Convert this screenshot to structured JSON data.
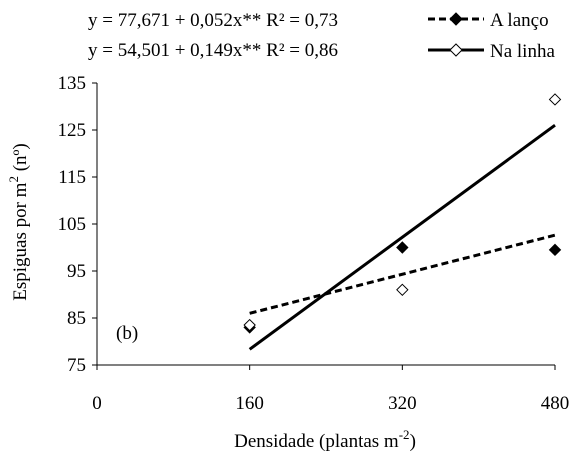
{
  "chart_data": {
    "type": "scatter",
    "panel_label": "(b)",
    "xlabel_main": "Densidade (plantas m",
    "xlabel_sup": "-2",
    "xlabel_end": ")",
    "ylabel_main": "Espiguas por m",
    "ylabel_sup": "2",
    "ylabel_end": " (nº)",
    "xlim": [
      0,
      480
    ],
    "ylim": [
      75,
      135
    ],
    "x_ticks": [
      0,
      160,
      320,
      480
    ],
    "y_ticks": [
      75,
      85,
      95,
      105,
      115,
      125,
      135
    ],
    "grid": false,
    "legend_position": "top",
    "series": [
      {
        "name": "A lanço",
        "equation": "y = 77,671 + 0,052x**  R² = 0,73",
        "marker": "filled-diamond",
        "line_style": "dashed",
        "intercept": 77.671,
        "slope": 0.052,
        "points": [
          [
            160,
            83
          ],
          [
            320,
            100
          ],
          [
            480,
            99.5
          ]
        ]
      },
      {
        "name": "Na linha",
        "equation": "y = 54,501 + 0,149x**  R² = 0,86",
        "marker": "open-diamond",
        "line_style": "solid",
        "intercept": 54.501,
        "slope": 0.149,
        "points": [
          [
            160,
            83.5
          ],
          [
            320,
            91
          ],
          [
            480,
            131.5
          ]
        ]
      }
    ]
  }
}
